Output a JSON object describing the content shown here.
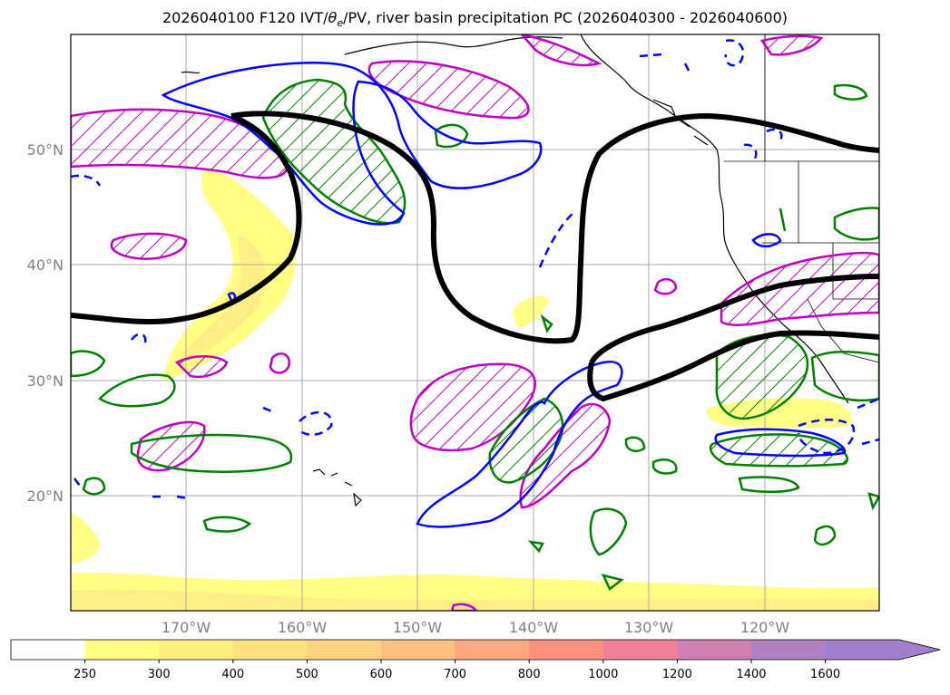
{
  "title": {
    "prefix": "2026040100 F120 IVT/",
    "theta": "θ",
    "theta_sub": "e",
    "suffix": "/PV, river basin precipitation PC (2026040300 - 2026040600)"
  },
  "map": {
    "lon_ticks": [
      "170°W",
      "160°W",
      "150°W",
      "140°W",
      "130°W",
      "120°W"
    ],
    "lat_ticks": [
      "50°N",
      "40°N",
      "30°N",
      "20°N"
    ]
  },
  "colorbar": {
    "levels": [
      "250",
      "300",
      "400",
      "500",
      "600",
      "700",
      "800",
      "1000",
      "1200",
      "1400",
      "1600"
    ],
    "colors": [
      "#ffffff",
      "#ffff80",
      "#ffee80",
      "#ffe080",
      "#ffd280",
      "#ffc080",
      "#ffa880",
      "#ff9080",
      "#f08098",
      "#d080b0",
      "#b080c0",
      "#a080cc",
      "#a080cc"
    ]
  }
}
